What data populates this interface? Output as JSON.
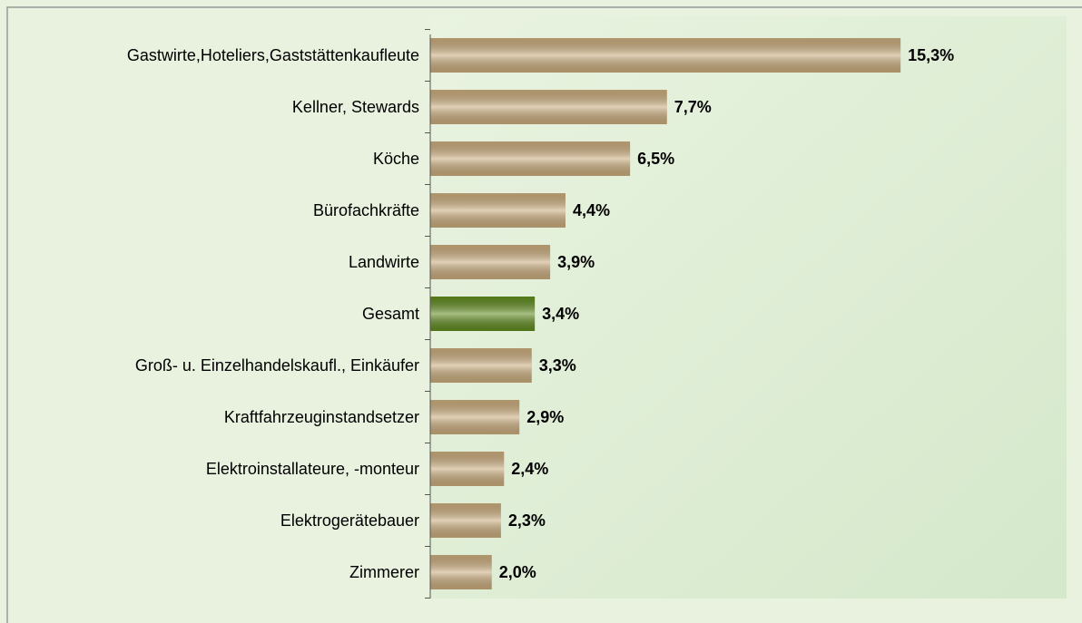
{
  "chart_data": {
    "type": "bar",
    "orientation": "horizontal",
    "categories": [
      "Gastwirte,Hoteliers,Gaststättenkaufleute",
      "Kellner, Stewards",
      "Köche",
      "Bürofachkräfte",
      "Landwirte",
      "Gesamt",
      "Groß- u. Einzelhandelskaufl., Einkäufer",
      "Kraftfahrzeuginstandsetzer",
      "Elektroinstallateure, -monteur",
      "Elektrogerätebauer",
      "Zimmerer"
    ],
    "values": [
      15.3,
      7.7,
      6.5,
      4.4,
      3.9,
      3.4,
      3.3,
      2.9,
      2.4,
      2.3,
      2.0
    ],
    "value_labels": [
      "15,3%",
      "7,7%",
      "6,5%",
      "4,4%",
      "3,9%",
      "3,4%",
      "3,3%",
      "2,9%",
      "2,4%",
      "2,3%",
      "2,0%"
    ],
    "colors": [
      "#c9ab7c",
      "#c9ab7c",
      "#c9ab7c",
      "#c9ab7c",
      "#c9ab7c",
      "#5f8a1e",
      "#c9ab7c",
      "#c9ab7c",
      "#c9ab7c",
      "#c9ab7c",
      "#c9ab7c"
    ],
    "xlim": [
      0,
      20.7
    ]
  }
}
